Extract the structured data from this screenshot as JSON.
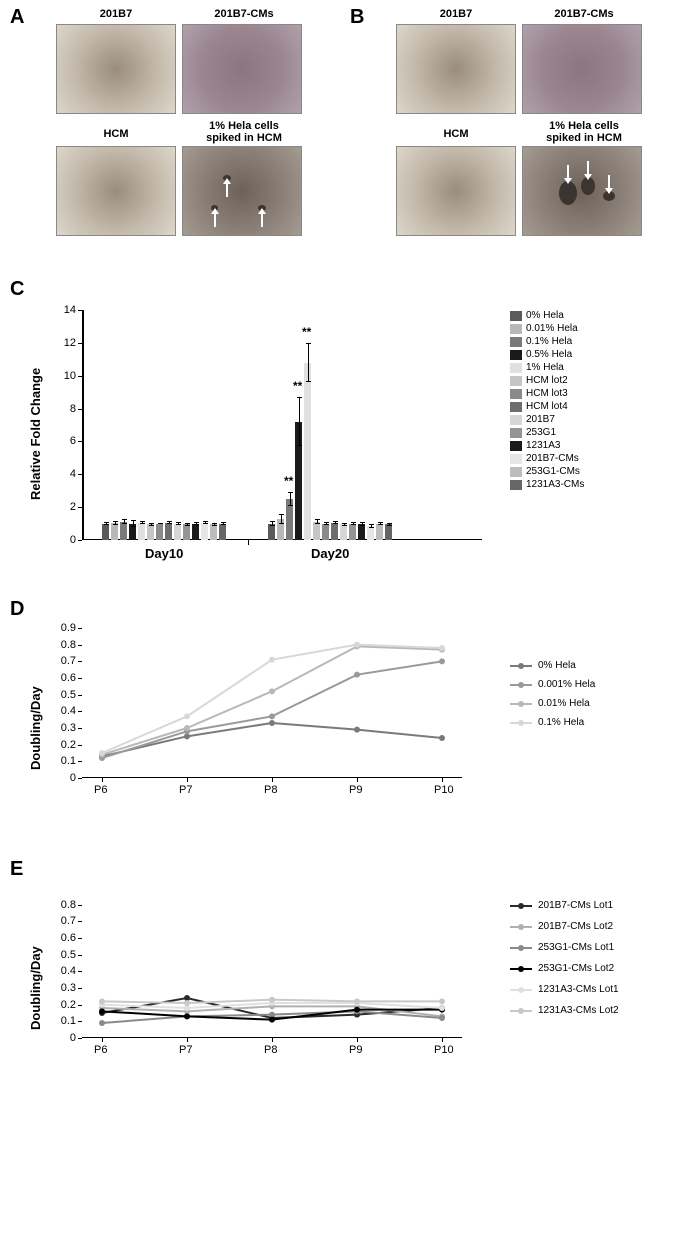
{
  "panelA": {
    "label": "A",
    "images": {
      "tl": "201B7",
      "tr": "201B7-CMs",
      "bl": "HCM",
      "br_line1": "1% Hela cells",
      "br_line2": "spiked in HCM"
    }
  },
  "panelB": {
    "label": "B",
    "images": {
      "tl": "201B7",
      "tr": "201B7-CMs",
      "bl": "HCM",
      "br_line1": "1% Hela cells",
      "br_line2": "spiked in HCM"
    }
  },
  "panelC": {
    "label": "C",
    "yaxis_title": "Relative Fold Change",
    "ylim": [
      0,
      14
    ],
    "ytick_step": 2,
    "yticks": [
      0,
      2,
      4,
      6,
      8,
      10,
      12,
      14
    ],
    "groups": [
      "Day10",
      "Day20"
    ],
    "series": [
      {
        "name": "0% Hela",
        "color": "#5a5a5a",
        "d10": 1.0,
        "d10e": 0.1,
        "d20": 1.0,
        "d20e": 0.15
      },
      {
        "name": "0.01% Hela",
        "color": "#b8b8b8",
        "d10": 1.05,
        "d10e": 0.12,
        "d20": 1.3,
        "d20e": 0.3
      },
      {
        "name": "0.1% Hela",
        "color": "#7a7a7a",
        "d10": 1.1,
        "d10e": 0.15,
        "d20": 2.5,
        "d20e": 0.4,
        "d20sig": "**"
      },
      {
        "name": "0.5% Hela",
        "color": "#1a1a1a",
        "d10": 1.0,
        "d10e": 0.2,
        "d20": 7.2,
        "d20e": 1.5,
        "d20sig": "**"
      },
      {
        "name": "1% Hela",
        "color": "#e0e0e0",
        "d10": 1.05,
        "d10e": 0.1,
        "d20": 10.8,
        "d20e": 1.2,
        "d20sig": "**"
      },
      {
        "name": "HCM lot2",
        "color": "#c5c5c5",
        "d10": 0.95,
        "d10e": 0.1,
        "d20": 1.1,
        "d20e": 0.15
      },
      {
        "name": "HCM lot3",
        "color": "#8a8a8a",
        "d10": 1.0,
        "d10e": 0.05,
        "d20": 1.0,
        "d20e": 0.1
      },
      {
        "name": "HCM lot4",
        "color": "#6d6d6d",
        "d10": 1.05,
        "d10e": 0.1,
        "d20": 1.05,
        "d20e": 0.1
      },
      {
        "name": "201B7",
        "color": "#d6d6d6",
        "d10": 1.0,
        "d10e": 0.08,
        "d20": 0.95,
        "d20e": 0.1
      },
      {
        "name": "253G1",
        "color": "#949494",
        "d10": 0.95,
        "d10e": 0.1,
        "d20": 1.0,
        "d20e": 0.1
      },
      {
        "name": "1231A3",
        "color": "#1a1a1a",
        "d10": 1.0,
        "d10e": 0.1,
        "d20": 1.0,
        "d20e": 0.12
      },
      {
        "name": "201B7-CMs",
        "color": "#e6e6e6",
        "d10": 1.05,
        "d10e": 0.1,
        "d20": 0.85,
        "d20e": 0.1
      },
      {
        "name": "253G1-CMs",
        "color": "#bcbcbc",
        "d10": 0.95,
        "d10e": 0.08,
        "d20": 1.0,
        "d20e": 0.1
      },
      {
        "name": "1231A3-CMs",
        "color": "#666666",
        "d10": 1.0,
        "d10e": 0.1,
        "d20": 0.95,
        "d20e": 0.1
      }
    ]
  },
  "panelD": {
    "label": "D",
    "yaxis_title": "Doubling/Day",
    "ylim": [
      0,
      0.9
    ],
    "yticks": [
      0,
      0.1,
      0.2,
      0.3,
      0.4,
      0.5,
      0.6,
      0.7,
      0.8,
      0.9
    ],
    "xlabels": [
      "P6",
      "P7",
      "P8",
      "P9",
      "P10"
    ],
    "series": [
      {
        "name": "0% Hela",
        "color": "#7a7a7a",
        "values": [
          0.13,
          0.25,
          0.33,
          0.29,
          0.24
        ]
      },
      {
        "name": "0.001% Hela",
        "color": "#9a9a9a",
        "values": [
          0.12,
          0.28,
          0.37,
          0.62,
          0.7
        ]
      },
      {
        "name": "0.01% Hela",
        "color": "#b8b8b8",
        "values": [
          0.14,
          0.3,
          0.52,
          0.79,
          0.77
        ]
      },
      {
        "name": "0.1% Hela",
        "color": "#d8d8d8",
        "values": [
          0.15,
          0.37,
          0.71,
          0.8,
          0.78
        ]
      }
    ]
  },
  "panelE": {
    "label": "E",
    "yaxis_title": "Doubling/Day",
    "ylim": [
      0,
      0.9
    ],
    "yticks": [
      0,
      0.1,
      0.2,
      0.3,
      0.4,
      0.5,
      0.6,
      0.7,
      0.8
    ],
    "xlabels": [
      "P6",
      "P7",
      "P8",
      "P9",
      "P10"
    ],
    "series": [
      {
        "name": "201B7-CMs Lot1",
        "color": "#2a2a2a",
        "values": [
          0.15,
          0.24,
          0.12,
          0.14,
          0.18
        ]
      },
      {
        "name": "201B7-CMs Lot2",
        "color": "#b0b0b0",
        "values": [
          0.18,
          0.16,
          0.19,
          0.19,
          0.13
        ]
      },
      {
        "name": "253G1-CMs Lot1",
        "color": "#8a8a8a",
        "values": [
          0.09,
          0.13,
          0.14,
          0.16,
          0.12
        ]
      },
      {
        "name": "253G1-CMs Lot2",
        "color": "#000000",
        "values": [
          0.16,
          0.13,
          0.11,
          0.17,
          0.17
        ]
      },
      {
        "name": "1231A3-CMs Lot1",
        "color": "#e0e0e0",
        "values": [
          0.2,
          0.18,
          0.21,
          0.21,
          0.18
        ]
      },
      {
        "name": "1231A3-CMs Lot2",
        "color": "#c8c8c8",
        "values": [
          0.22,
          0.21,
          0.23,
          0.22,
          0.22
        ]
      }
    ]
  }
}
